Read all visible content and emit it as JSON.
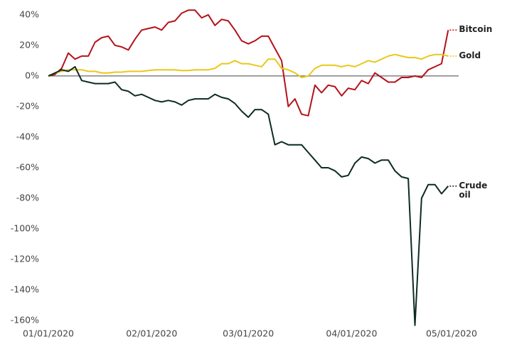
{
  "chart_data": {
    "type": "line",
    "x": [
      "01/01/2020",
      "01/03/2020",
      "01/05/2020",
      "01/07/2020",
      "01/09/2020",
      "01/11/2020",
      "01/13/2020",
      "01/15/2020",
      "01/17/2020",
      "01/19/2020",
      "01/21/2020",
      "01/23/2020",
      "01/25/2020",
      "01/27/2020",
      "01/29/2020",
      "01/31/2020",
      "02/02/2020",
      "02/04/2020",
      "02/06/2020",
      "02/08/2020",
      "02/10/2020",
      "02/12/2020",
      "02/14/2020",
      "02/16/2020",
      "02/18/2020",
      "02/20/2020",
      "02/22/2020",
      "02/24/2020",
      "02/26/2020",
      "02/28/2020",
      "03/01/2020",
      "03/03/2020",
      "03/05/2020",
      "03/07/2020",
      "03/09/2020",
      "03/11/2020",
      "03/13/2020",
      "03/15/2020",
      "03/17/2020",
      "03/19/2020",
      "03/21/2020",
      "03/23/2020",
      "03/25/2020",
      "03/27/2020",
      "03/29/2020",
      "03/31/2020",
      "04/02/2020",
      "04/04/2020",
      "04/06/2020",
      "04/08/2020",
      "04/10/2020",
      "04/12/2020",
      "04/14/2020",
      "04/16/2020",
      "04/18/2020",
      "04/20/2020",
      "04/22/2020",
      "04/24/2020",
      "04/26/2020",
      "04/28/2020",
      "04/30/2020"
    ],
    "series": [
      {
        "name": "Bitcoin",
        "color": "#b5121b",
        "values": [
          0,
          1,
          5,
          15,
          11,
          13,
          13,
          22,
          25,
          26,
          20,
          19,
          17,
          24,
          30,
          31,
          32,
          30,
          35,
          36,
          41,
          43,
          43,
          38,
          40,
          33,
          37,
          36,
          30,
          23,
          21,
          23,
          26,
          26,
          18,
          10,
          -20,
          -15,
          -25,
          -26,
          -6,
          -11,
          -6,
          -7,
          -13,
          -8,
          -9,
          -3,
          -5,
          2,
          -1,
          -4,
          -4,
          -1,
          -1,
          0,
          -1,
          4,
          6,
          8,
          30
        ]
      },
      {
        "name": "Gold",
        "color": "#e8c81a",
        "values": [
          0,
          2,
          3,
          4,
          4,
          4,
          3,
          3,
          2,
          2,
          2.5,
          2.5,
          3,
          3,
          3,
          3.5,
          4,
          4,
          4,
          4,
          3.5,
          3.5,
          4,
          4,
          4,
          5,
          8,
          8,
          10,
          8,
          8,
          7,
          6,
          11,
          11,
          5,
          4,
          2,
          -1,
          0,
          5,
          7,
          7,
          7,
          6,
          7,
          6,
          8,
          10,
          9,
          11,
          13,
          14,
          13,
          12,
          12,
          11,
          13,
          14,
          14,
          13
        ]
      },
      {
        "name": "Crude oil",
        "color": "#0d2b24",
        "values": [
          0,
          2,
          4,
          3,
          6,
          -3,
          -4,
          -5,
          -5,
          -5,
          -4,
          -9,
          -10,
          -13,
          -12,
          -14,
          -16,
          -17,
          -16,
          -17,
          -19,
          -16,
          -15,
          -15,
          -15,
          -12,
          -14,
          -15,
          -18,
          -23,
          -27,
          -22,
          -22,
          -25,
          -45,
          -43,
          -45,
          -45,
          -45,
          -50,
          -55,
          -60,
          -60,
          -62,
          -66,
          -65,
          -57,
          -53,
          -54,
          -57,
          -55,
          -55,
          -62,
          -66,
          -67,
          -163,
          -80,
          -71,
          -71,
          -77,
          -72
        ]
      }
    ],
    "xlim": [
      "01/01/2020",
      "05/01/2020"
    ],
    "xticks": [
      "01/01/2020",
      "02/01/2020",
      "03/01/2020",
      "04/01/2020",
      "05/01/2020"
    ],
    "ylim": [
      -165,
      45
    ],
    "yticks": [
      {
        "value": 40,
        "label": "40%"
      },
      {
        "value": 20,
        "label": "20%"
      },
      {
        "value": 0,
        "label": "0%"
      },
      {
        "value": -20,
        "label": "-20%"
      },
      {
        "value": -40,
        "label": "-40%"
      },
      {
        "value": -60,
        "label": "-60%"
      },
      {
        "value": -80,
        "label": "-80%"
      },
      {
        "value": -100,
        "label": "-100%"
      },
      {
        "value": -120,
        "label": "-120%"
      },
      {
        "value": -140,
        "label": "-140%"
      },
      {
        "value": -160,
        "label": "-160%"
      }
    ]
  }
}
